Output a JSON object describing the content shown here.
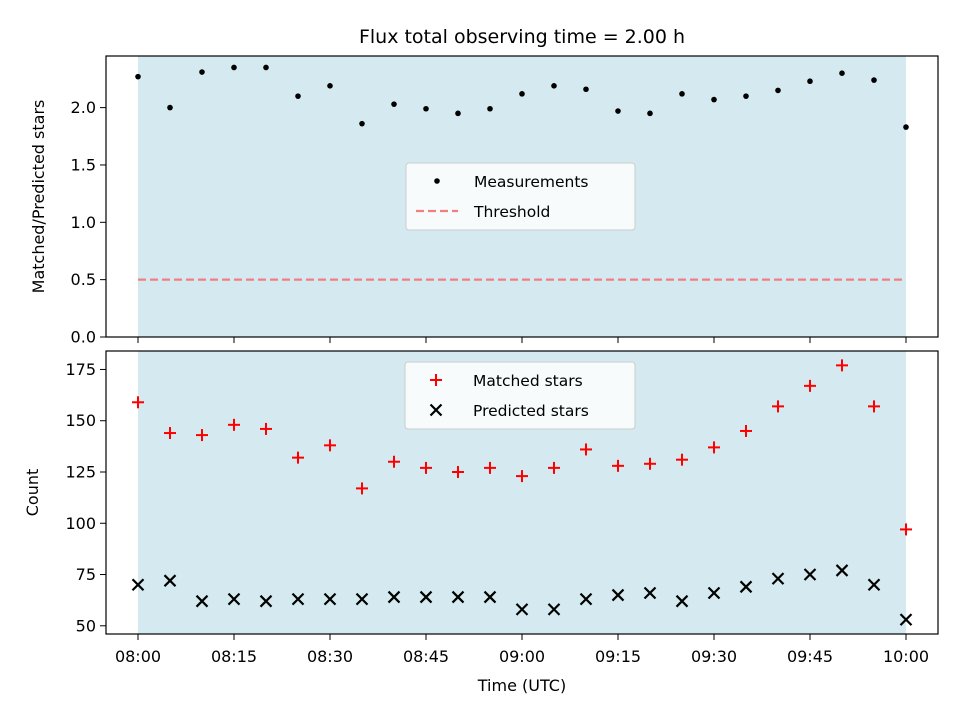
{
  "title": "Flux total observing time = 2.00 h",
  "xlabel": "Time (UTC)",
  "x_ticks": [
    "08:00",
    "08:15",
    "08:30",
    "08:45",
    "09:00",
    "09:15",
    "09:30",
    "09:45",
    "10:00"
  ],
  "colors": {
    "band": "#d4eaf0",
    "measurement": "#000000",
    "threshold": "#f08080",
    "matched": "#ff0000",
    "predicted": "#000000"
  },
  "chart_data": [
    {
      "type": "scatter",
      "ylabel": "Matched/Predicted stars",
      "ylim": [
        0,
        2.45
      ],
      "yticks": [
        0.0,
        0.5,
        1.0,
        1.5,
        2.0
      ],
      "ytick_labels": [
        "0.0",
        "0.5",
        "1.0",
        "1.5",
        "2.0"
      ],
      "xlim": [
        "07:55",
        "10:05"
      ],
      "observing_window": [
        "08:00",
        "10:00"
      ],
      "threshold": 0.5,
      "legend_position": "center",
      "series": [
        {
          "name": "Measurements",
          "marker": "dot",
          "x": [
            "08:00",
            "08:05",
            "08:10",
            "08:15",
            "08:20",
            "08:25",
            "08:30",
            "08:35",
            "08:40",
            "08:45",
            "08:50",
            "08:55",
            "09:00",
            "09:05",
            "09:10",
            "09:15",
            "09:20",
            "09:25",
            "09:30",
            "09:35",
            "09:40",
            "09:45",
            "09:50",
            "09:55",
            "10:00"
          ],
          "y": [
            2.27,
            2.0,
            2.31,
            2.35,
            2.35,
            2.1,
            2.19,
            1.86,
            2.03,
            1.99,
            1.95,
            1.99,
            2.12,
            2.19,
            2.16,
            1.97,
            1.95,
            2.12,
            2.07,
            2.1,
            2.15,
            2.23,
            2.3,
            2.24,
            1.83
          ]
        },
        {
          "name": "Threshold",
          "style": "dashed",
          "y": 0.5
        }
      ]
    },
    {
      "type": "scatter",
      "ylabel": "Count",
      "ylim": [
        46,
        184
      ],
      "yticks": [
        50,
        75,
        100,
        125,
        150,
        175
      ],
      "ytick_labels": [
        "50",
        "75",
        "100",
        "125",
        "150",
        "175"
      ],
      "xlim": [
        "07:55",
        "10:05"
      ],
      "observing_window": [
        "08:00",
        "10:00"
      ],
      "legend_position": "upper center",
      "series": [
        {
          "name": "Matched stars",
          "marker": "plus",
          "x": [
            "08:00",
            "08:05",
            "08:10",
            "08:15",
            "08:20",
            "08:25",
            "08:30",
            "08:35",
            "08:40",
            "08:45",
            "08:50",
            "08:55",
            "09:00",
            "09:05",
            "09:10",
            "09:15",
            "09:20",
            "09:25",
            "09:30",
            "09:35",
            "09:40",
            "09:45",
            "09:50",
            "09:55",
            "10:00"
          ],
          "y": [
            159,
            144,
            143,
            148,
            146,
            132,
            138,
            117,
            130,
            127,
            125,
            127,
            123,
            127,
            136,
            128,
            129,
            131,
            137,
            145,
            157,
            167,
            177,
            157,
            97
          ]
        },
        {
          "name": "Predicted stars",
          "marker": "x",
          "x": [
            "08:00",
            "08:05",
            "08:10",
            "08:15",
            "08:20",
            "08:25",
            "08:30",
            "08:35",
            "08:40",
            "08:45",
            "08:50",
            "08:55",
            "09:00",
            "09:05",
            "09:10",
            "09:15",
            "09:20",
            "09:25",
            "09:30",
            "09:35",
            "09:40",
            "09:45",
            "09:50",
            "09:55",
            "10:00"
          ],
          "y": [
            70,
            72,
            62,
            63,
            62,
            63,
            63,
            63,
            64,
            64,
            64,
            64,
            58,
            58,
            63,
            65,
            66,
            62,
            66,
            69,
            73,
            75,
            77,
            70,
            53
          ]
        }
      ]
    }
  ]
}
